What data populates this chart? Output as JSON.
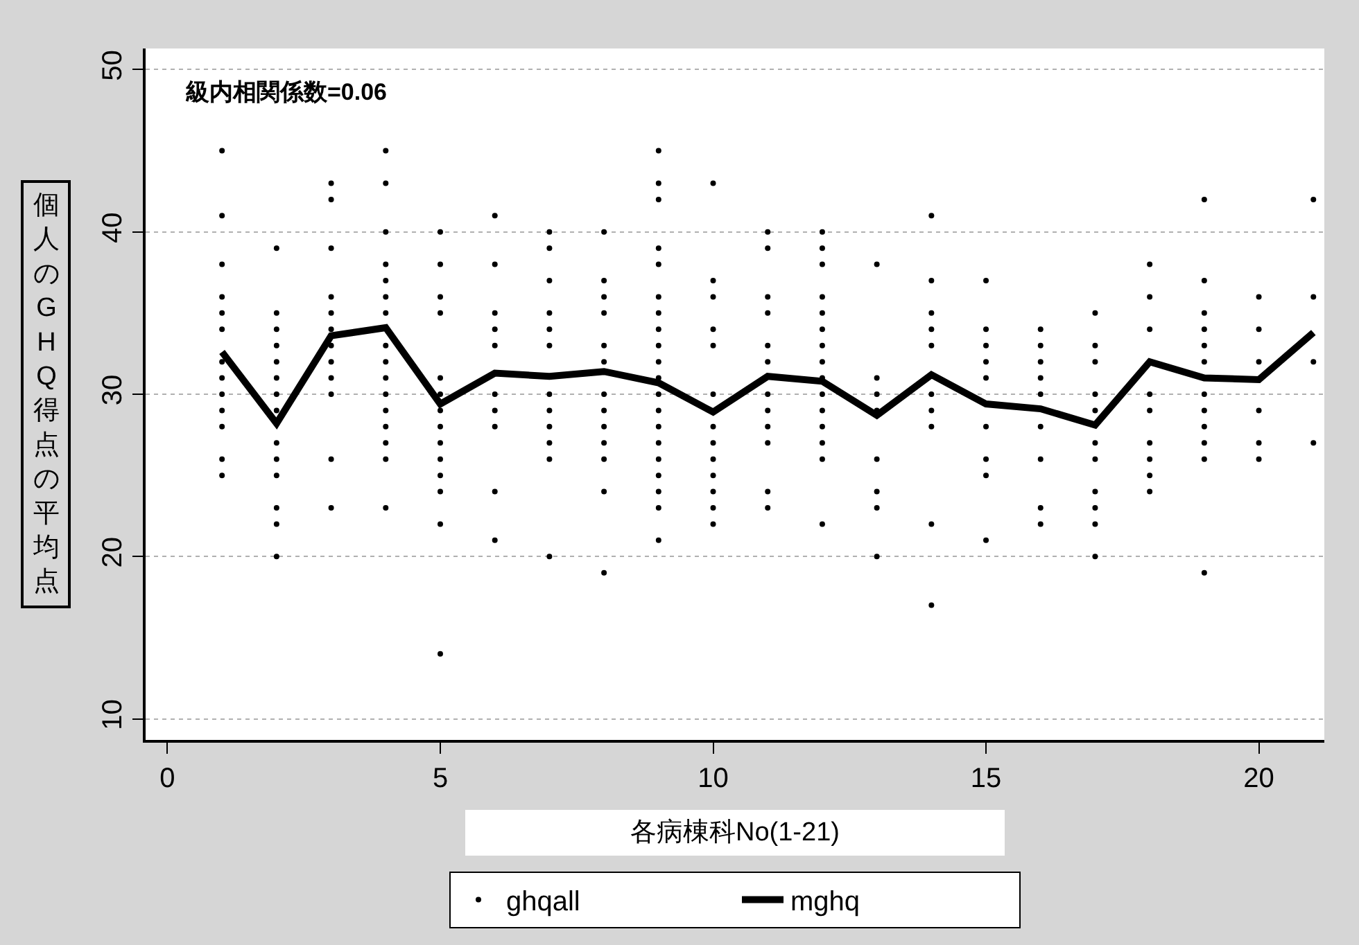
{
  "chart_data": {
    "type": "scatter",
    "xlabel": "各病棟科No(1-21)",
    "ylabel": "個人のGHQ得点の平均点",
    "annotations": [
      "級内相関係数=0.06"
    ],
    "xlim": [
      -0.4,
      21.2
    ],
    "xticks": [
      0,
      5,
      10,
      15,
      20
    ],
    "ylim": [
      8.7,
      51.3
    ],
    "yticks": [
      10,
      20,
      30,
      40,
      50
    ],
    "grid": "y",
    "legend": "bottom",
    "series": [
      {
        "name": "ghqall",
        "type": "scatter",
        "marker": "circle",
        "color": "#000000",
        "x": [
          1,
          1,
          1,
          1,
          1,
          1,
          1,
          1,
          1,
          1,
          1,
          1,
          1,
          2,
          2,
          2,
          2,
          2,
          2,
          2,
          2,
          2,
          2,
          2,
          2,
          2,
          2,
          3,
          3,
          3,
          3,
          3,
          3,
          3,
          3,
          3,
          3,
          3,
          3,
          4,
          4,
          4,
          4,
          4,
          4,
          4,
          4,
          4,
          4,
          4,
          4,
          4,
          4,
          4,
          4,
          5,
          5,
          5,
          5,
          5,
          5,
          5,
          5,
          5,
          5,
          5,
          5,
          5,
          5,
          6,
          6,
          6,
          6,
          6,
          6,
          6,
          6,
          6,
          6,
          7,
          7,
          7,
          7,
          7,
          7,
          7,
          7,
          7,
          7,
          7,
          7,
          8,
          8,
          8,
          8,
          8,
          8,
          8,
          8,
          8,
          8,
          8,
          8,
          8,
          9,
          9,
          9,
          9,
          9,
          9,
          9,
          9,
          9,
          9,
          9,
          9,
          9,
          9,
          9,
          9,
          9,
          9,
          9,
          9,
          10,
          10,
          10,
          10,
          10,
          10,
          10,
          10,
          10,
          10,
          10,
          10,
          10,
          11,
          11,
          11,
          11,
          11,
          11,
          11,
          11,
          11,
          11,
          11,
          11,
          12,
          12,
          12,
          12,
          12,
          12,
          12,
          12,
          12,
          12,
          12,
          12,
          12,
          12,
          12,
          13,
          13,
          13,
          13,
          13,
          13,
          13,
          13,
          14,
          14,
          14,
          14,
          14,
          14,
          14,
          14,
          14,
          14,
          15,
          15,
          15,
          15,
          15,
          15,
          15,
          15,
          15,
          16,
          16,
          16,
          16,
          16,
          16,
          16,
          16,
          16,
          17,
          17,
          17,
          17,
          17,
          17,
          17,
          17,
          17,
          17,
          17,
          18,
          18,
          18,
          18,
          18,
          18,
          18,
          18,
          18,
          19,
          19,
          19,
          19,
          19,
          19,
          19,
          19,
          19,
          19,
          19,
          19,
          20,
          20,
          20,
          20,
          20,
          20,
          21,
          21,
          21,
          21
        ],
        "values": [
          45,
          41,
          38,
          36,
          35,
          34,
          32,
          31,
          30,
          29,
          28,
          26,
          25,
          39,
          35,
          34,
          33,
          32,
          31,
          30,
          29,
          27,
          26,
          25,
          23,
          22,
          20,
          43,
          42,
          39,
          36,
          35,
          34,
          33,
          32,
          31,
          30,
          26,
          23,
          45,
          43,
          40,
          38,
          37,
          36,
          35,
          33,
          32,
          31,
          30,
          29,
          28,
          27,
          26,
          23,
          40,
          38,
          36,
          35,
          31,
          30,
          29,
          28,
          27,
          26,
          25,
          24,
          22,
          14,
          41,
          38,
          35,
          34,
          33,
          30,
          29,
          28,
          24,
          21,
          40,
          39,
          37,
          35,
          34,
          33,
          30,
          29,
          28,
          27,
          26,
          20,
          40,
          37,
          36,
          35,
          33,
          32,
          30,
          29,
          28,
          27,
          26,
          24,
          19,
          45,
          43,
          42,
          39,
          38,
          36,
          35,
          34,
          33,
          32,
          31,
          30,
          29,
          28,
          27,
          26,
          25,
          24,
          23,
          21,
          43,
          37,
          36,
          34,
          33,
          30,
          28,
          27,
          26,
          25,
          24,
          23,
          22,
          40,
          39,
          36,
          35,
          33,
          32,
          30,
          29,
          28,
          27,
          24,
          23,
          40,
          39,
          38,
          36,
          35,
          34,
          33,
          32,
          31,
          30,
          29,
          28,
          27,
          26,
          22,
          38,
          31,
          30,
          29,
          26,
          24,
          23,
          20,
          41,
          37,
          35,
          34,
          33,
          30,
          29,
          28,
          22,
          17,
          37,
          34,
          33,
          32,
          31,
          28,
          26,
          25,
          21,
          34,
          33,
          32,
          31,
          30,
          28,
          26,
          23,
          22,
          35,
          33,
          32,
          30,
          29,
          27,
          26,
          24,
          23,
          22,
          20,
          38,
          36,
          34,
          30,
          29,
          27,
          26,
          25,
          24,
          42,
          37,
          35,
          34,
          33,
          32,
          30,
          29,
          28,
          27,
          26,
          19,
          36,
          34,
          32,
          29,
          27,
          26,
          42,
          36,
          32,
          27
        ]
      },
      {
        "name": "mghq",
        "type": "line",
        "marker": "none",
        "line_style": "solid",
        "color": "#000000",
        "x": [
          1,
          2,
          3,
          4,
          5,
          6,
          7,
          8,
          9,
          10,
          11,
          12,
          13,
          14,
          15,
          16,
          17,
          18,
          19,
          20,
          21
        ],
        "values": [
          32.6,
          28.2,
          33.6,
          34.1,
          29.4,
          31.3,
          31.1,
          31.4,
          30.7,
          28.9,
          31.1,
          30.8,
          28.7,
          31.2,
          29.4,
          29.1,
          28.1,
          32.0,
          31.0,
          30.9,
          33.8
        ]
      }
    ]
  }
}
